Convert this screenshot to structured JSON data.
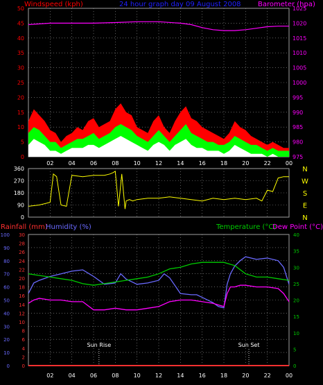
{
  "colors": {
    "background": "#000000",
    "wind_gust": "#ff0000",
    "wind_avg": "#00ff00",
    "wind_min": "#ffffff",
    "barometer": "#ff00ff",
    "direction": "#ffff00",
    "rainfall": "#ff3030",
    "humidity": "#6a6aff",
    "temperature": "#00cc00",
    "dewpoint": "#ff00ff",
    "grid": "#a0a0a0",
    "sun_label": "#ffffff"
  },
  "chart_data": [
    {
      "type": "line",
      "title": "24 hour graph day  09 August 2008",
      "ylabel_left": "Windspeed (kph)",
      "ylabel_right": "Barometer (hpa)",
      "ylim_left": [
        0,
        50
      ],
      "yticks_left": [
        "0",
        "5",
        "10",
        "15",
        "20",
        "25",
        "30",
        "35",
        "40",
        "45",
        "50"
      ],
      "ylim_right": [
        975,
        1025
      ],
      "yticks_right": [
        "975",
        "980",
        "985",
        "990",
        "995",
        "1000",
        "1005",
        "1010",
        "1015",
        "1020",
        "1025"
      ],
      "xlim": [
        0,
        24
      ],
      "xticks": [
        "02",
        "04",
        "06",
        "08",
        "10",
        "12",
        "14",
        "16",
        "18",
        "20",
        "22",
        "00"
      ],
      "grid": "dotted",
      "series": [
        {
          "key": "gust",
          "axis": "left",
          "x": [
            0,
            0.5,
            1,
            1.5,
            2,
            2.5,
            3,
            3.5,
            4,
            4.5,
            5,
            5.5,
            6,
            6.5,
            7,
            7.5,
            8,
            8.5,
            9,
            9.5,
            10,
            10.5,
            11,
            11.5,
            12,
            12.5,
            13,
            13.5,
            14,
            14.5,
            15,
            15.5,
            16,
            16.5,
            17,
            17.5,
            18,
            18.5,
            19,
            19.5,
            20,
            20.5,
            21,
            21.5,
            22,
            22.5,
            23,
            23.5,
            24
          ],
          "y": [
            12,
            16,
            14,
            12,
            9,
            8,
            5,
            7,
            8,
            10,
            9,
            12,
            13,
            10,
            11,
            12,
            16,
            18,
            15,
            14,
            10,
            9,
            8,
            12,
            14,
            10,
            8,
            12,
            15,
            17,
            13,
            12,
            10,
            9,
            8,
            7,
            6,
            8,
            12,
            10,
            9,
            7,
            6,
            5,
            4,
            5,
            4,
            3,
            3
          ]
        },
        {
          "key": "avg",
          "axis": "left",
          "x": [
            0,
            0.5,
            1,
            1.5,
            2,
            2.5,
            3,
            3.5,
            4,
            4.5,
            5,
            5.5,
            6,
            6.5,
            7,
            7.5,
            8,
            8.5,
            9,
            9.5,
            10,
            10.5,
            11,
            11.5,
            12,
            12.5,
            13,
            13.5,
            14,
            14.5,
            15,
            15.5,
            16,
            16.5,
            17,
            17.5,
            18,
            18.5,
            19,
            19.5,
            20,
            20.5,
            21,
            21.5,
            22,
            22.5,
            23,
            23.5,
            24
          ],
          "y": [
            8,
            10,
            9,
            7,
            5,
            5,
            3,
            4,
            5,
            6,
            6,
            7,
            8,
            6,
            7,
            8,
            10,
            11,
            10,
            9,
            7,
            6,
            5,
            7,
            9,
            7,
            5,
            7,
            9,
            11,
            8,
            7,
            6,
            5,
            5,
            4,
            4,
            5,
            7,
            6,
            5,
            4,
            4,
            3,
            2,
            3,
            2,
            2,
            2
          ]
        },
        {
          "key": "min",
          "axis": "left",
          "x": [
            0,
            0.5,
            1,
            1.5,
            2,
            2.5,
            3,
            3.5,
            4,
            4.5,
            5,
            5.5,
            6,
            6.5,
            7,
            7.5,
            8,
            8.5,
            9,
            9.5,
            10,
            10.5,
            11,
            11.5,
            12,
            12.5,
            13,
            13.5,
            14,
            14.5,
            15,
            15.5,
            16,
            16.5,
            17,
            17.5,
            18,
            18.5,
            19,
            19.5,
            20,
            20.5,
            21,
            21.5,
            22,
            22.5,
            23,
            23.5,
            24
          ],
          "y": [
            4,
            6,
            5,
            4,
            2,
            2,
            1,
            2,
            3,
            3,
            3,
            4,
            4,
            3,
            4,
            5,
            6,
            7,
            6,
            5,
            4,
            3,
            2,
            4,
            5,
            4,
            2,
            4,
            5,
            6,
            4,
            3,
            3,
            2,
            2,
            2,
            1,
            2,
            4,
            3,
            2,
            1,
            1,
            1,
            0,
            1,
            0,
            0,
            0
          ]
        },
        {
          "key": "barometer",
          "axis": "right",
          "x": [
            0,
            2,
            4,
            6,
            8,
            10,
            12,
            14,
            15,
            16,
            17,
            18,
            19,
            20,
            21,
            22,
            23,
            24
          ],
          "y": [
            1019.5,
            1020,
            1020,
            1020,
            1020.2,
            1020.5,
            1020.5,
            1020,
            1019.5,
            1018.5,
            1017.8,
            1017.5,
            1017.5,
            1017.8,
            1018.3,
            1018.8,
            1019,
            1019
          ]
        }
      ]
    },
    {
      "type": "line",
      "ylim": [
        0,
        360
      ],
      "yticks": [
        "0",
        "90",
        "180",
        "270",
        "360"
      ],
      "compass": [
        "N",
        "W",
        "S",
        "E",
        "N"
      ],
      "xlim": [
        0,
        24
      ],
      "series": [
        {
          "key": "direction",
          "x": [
            0,
            1,
            1.5,
            2,
            2.3,
            2.6,
            3,
            3.5,
            4,
            5,
            6,
            7,
            7.5,
            7.8,
            8,
            8.3,
            8.6,
            8.9,
            9,
            9.3,
            9.6,
            10,
            11,
            12,
            13,
            14,
            15,
            16,
            17,
            18,
            19,
            20,
            21,
            21.5,
            22,
            22.5,
            23,
            23.5,
            24
          ],
          "y": [
            80,
            90,
            100,
            110,
            320,
            300,
            90,
            80,
            310,
            300,
            310,
            310,
            320,
            330,
            340,
            80,
            320,
            60,
            120,
            130,
            120,
            130,
            140,
            140,
            150,
            140,
            130,
            120,
            140,
            130,
            140,
            130,
            140,
            120,
            200,
            190,
            290,
            300,
            300
          ]
        }
      ]
    },
    {
      "type": "line",
      "ylabel_left_1": "Rainfall (mm)",
      "ylabel_left_2": "Humidity (%)",
      "ylabel_right_1": "Temperature (°C)",
      "ylabel_right_2": "Dew Point (°C)",
      "ylim_rain": [
        0,
        30
      ],
      "yticks_rain": [
        "0",
        "2",
        "4",
        "6",
        "8",
        "10",
        "12",
        "14",
        "16",
        "18",
        "20",
        "22",
        "24",
        "26",
        "28",
        "30"
      ],
      "ylim_hum": [
        0,
        100
      ],
      "yticks_hum": [
        "0",
        "10",
        "20",
        "30",
        "40",
        "50",
        "60",
        "70",
        "80",
        "90",
        "100"
      ],
      "ylim_temp": [
        0,
        40
      ],
      "yticks_temp": [
        "0",
        "5",
        "10",
        "15",
        "20",
        "25",
        "30",
        "35",
        "40"
      ],
      "xlim": [
        0,
        24
      ],
      "xticks": [
        "02",
        "04",
        "06",
        "08",
        "10",
        "12",
        "14",
        "16",
        "18",
        "20",
        "22",
        "00"
      ],
      "annotations": [
        {
          "label": "Sun Rise",
          "x": 6.5
        },
        {
          "label": "Sun Set",
          "x": 20.3
        }
      ],
      "series": [
        {
          "key": "rainfall",
          "axis": "rain",
          "x": [
            0,
            24
          ],
          "y": [
            0,
            0
          ]
        },
        {
          "key": "humidity",
          "axis": "hum",
          "x": [
            0,
            0.5,
            1,
            2,
            3,
            4,
            5,
            6,
            7,
            8,
            8.5,
            9,
            10,
            11,
            12,
            12.5,
            13,
            14,
            15,
            15.5,
            16,
            17,
            17.5,
            18,
            18.3,
            18.6,
            19,
            19.5,
            20,
            21,
            22,
            23,
            23.5,
            24
          ],
          "y": [
            55,
            63,
            65,
            68,
            70,
            72,
            73,
            68,
            62,
            63,
            70,
            66,
            62,
            63,
            65,
            70,
            67,
            55,
            54,
            54,
            52,
            48,
            45,
            44,
            62,
            70,
            76,
            80,
            83,
            81,
            82,
            80,
            75,
            62
          ]
        },
        {
          "key": "temperature",
          "axis": "temp",
          "x": [
            0,
            1,
            2,
            3,
            4,
            5,
            6,
            7,
            8,
            9,
            10,
            11,
            12,
            13,
            14,
            15,
            16,
            17,
            18,
            19,
            20,
            21,
            22,
            23,
            24
          ],
          "y": [
            28,
            27.5,
            27,
            26.5,
            26,
            25,
            24.5,
            25,
            25.5,
            26,
            26.5,
            27,
            28,
            29.5,
            30,
            31,
            31.5,
            31.5,
            31.5,
            30.5,
            28,
            27,
            27,
            26.5,
            26
          ]
        },
        {
          "key": "dewpoint",
          "axis": "temp",
          "x": [
            0,
            0.5,
            1,
            2,
            3,
            4,
            5,
            6,
            7,
            8,
            9,
            10,
            11,
            12,
            13,
            14,
            15,
            16,
            17,
            17.5,
            18,
            18.3,
            18.6,
            19,
            19.5,
            20,
            21,
            22,
            23,
            23.5,
            24
          ],
          "y": [
            19,
            20,
            20.5,
            20,
            20,
            19.5,
            19.5,
            17,
            17,
            17.5,
            17,
            17,
            17.5,
            18,
            19.5,
            20,
            20,
            19.5,
            19,
            18.5,
            18,
            22,
            24,
            24,
            24.5,
            24.5,
            24,
            24,
            23.5,
            22,
            19.5
          ]
        }
      ]
    }
  ]
}
